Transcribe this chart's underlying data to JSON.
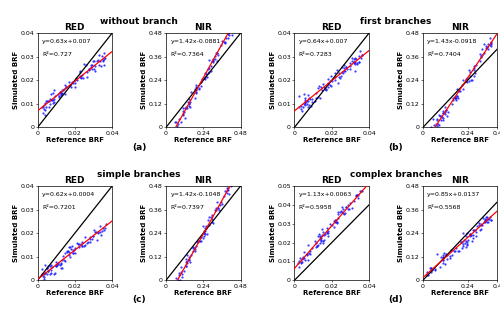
{
  "panels": [
    {
      "group": "without branch",
      "band": "RED",
      "equation": "y=0.63x+0.007",
      "r2": "R²=0.727",
      "xlim": [
        0,
        0.04
      ],
      "ylim": [
        0,
        0.04
      ],
      "xticks": [
        0,
        0.02,
        0.04
      ],
      "yticks": [
        0,
        0.01,
        0.02,
        0.03,
        0.04
      ],
      "xticklabels": [
        "0",
        "0.02",
        "0.04"
      ],
      "yticklabels": [
        "0",
        "0.01",
        "0.02",
        "0.03",
        "0.04"
      ],
      "slope": 0.63,
      "intercept": 0.007,
      "seed": 42
    },
    {
      "group": "without branch",
      "band": "NIR",
      "equation": "y=1.42x-0.0881",
      "r2": "R²=0.7364",
      "xlim": [
        0,
        0.48
      ],
      "ylim": [
        0,
        0.48
      ],
      "xticks": [
        0,
        0.24,
        0.48
      ],
      "yticks": [
        0,
        0.12,
        0.24,
        0.36,
        0.48
      ],
      "xticklabels": [
        "0",
        "0.24",
        "0.48"
      ],
      "yticklabels": [
        "0",
        "0.12",
        "0.24",
        "0.36",
        "0.48"
      ],
      "slope": 1.42,
      "intercept": -0.0881,
      "seed": 43
    },
    {
      "group": "first branches",
      "band": "RED",
      "equation": "y=0.64x+0.007",
      "r2": "R²=0.7283",
      "xlim": [
        0,
        0.04
      ],
      "ylim": [
        0,
        0.04
      ],
      "xticks": [
        0,
        0.02,
        0.04
      ],
      "yticks": [
        0,
        0.01,
        0.02,
        0.03,
        0.04
      ],
      "xticklabels": [
        "0",
        "0.02",
        "0.04"
      ],
      "yticklabels": [
        "0",
        "0.01",
        "0.02",
        "0.03",
        "0.04"
      ],
      "slope": 0.64,
      "intercept": 0.007,
      "seed": 44
    },
    {
      "group": "first branches",
      "band": "NIR",
      "equation": "y=1.43x-0.0918",
      "r2": "R²=0.7404",
      "xlim": [
        0,
        0.4
      ],
      "ylim": [
        0,
        0.48
      ],
      "xticks": [
        0,
        0.24,
        0.4
      ],
      "yticks": [
        0,
        0.12,
        0.24,
        0.36,
        0.48
      ],
      "xticklabels": [
        "0",
        "0.24",
        "0.4"
      ],
      "yticklabels": [
        "0",
        "0.12",
        "0.24",
        "0.36",
        "0.48"
      ],
      "slope": 1.43,
      "intercept": -0.0918,
      "seed": 45
    },
    {
      "group": "simple branches",
      "band": "RED",
      "equation": "y=0.62x+0.0004",
      "r2": "R²=0.7201",
      "xlim": [
        0,
        0.04
      ],
      "ylim": [
        0,
        0.04
      ],
      "xticks": [
        0,
        0.02,
        0.04
      ],
      "yticks": [
        0,
        0.01,
        0.02,
        0.03,
        0.04
      ],
      "xticklabels": [
        "0",
        "0.02",
        "0.04"
      ],
      "yticklabels": [
        "0",
        "0.01",
        "0.02",
        "0.03",
        "0.04"
      ],
      "slope": 0.62,
      "intercept": 0.0004,
      "seed": 46
    },
    {
      "group": "simple branches",
      "band": "NIR",
      "equation": "y=1.42x-0.1048",
      "r2": "R²=0.7397",
      "xlim": [
        0,
        0.48
      ],
      "ylim": [
        0,
        0.48
      ],
      "xticks": [
        0,
        0.24,
        0.48
      ],
      "yticks": [
        0,
        0.12,
        0.24,
        0.36,
        0.48
      ],
      "xticklabels": [
        "0",
        "0.24",
        "0.48"
      ],
      "yticklabels": [
        "0",
        "0.12",
        "0.24",
        "0.36",
        "0.48"
      ],
      "slope": 1.42,
      "intercept": -0.1048,
      "seed": 47
    },
    {
      "group": "complex branches",
      "band": "RED",
      "equation": "y=1.13x+0.0063",
      "r2": "R²=0.5958",
      "xlim": [
        0,
        0.04
      ],
      "ylim": [
        0,
        0.05
      ],
      "xticks": [
        0,
        0.02,
        0.04
      ],
      "yticks": [
        0,
        0.01,
        0.02,
        0.03,
        0.04,
        0.05
      ],
      "xticklabels": [
        "0",
        "0.02",
        "0.04"
      ],
      "yticklabels": [
        "0",
        "0.01",
        "0.02",
        "0.03",
        "0.04",
        "0.05"
      ],
      "slope": 1.13,
      "intercept": 0.0063,
      "seed": 48
    },
    {
      "group": "complex branches",
      "band": "NIR",
      "equation": "y=0.85x+0.0137",
      "r2": "R²=0.5568",
      "xlim": [
        0,
        0.4
      ],
      "ylim": [
        0,
        0.48
      ],
      "xticks": [
        0,
        0.24,
        0.4
      ],
      "yticks": [
        0,
        0.12,
        0.24,
        0.36,
        0.48
      ],
      "xticklabels": [
        "0",
        "0.24",
        "0.4"
      ],
      "yticklabels": [
        "0",
        "0.12",
        "0.24",
        "0.36",
        "0.48"
      ],
      "slope": 0.85,
      "intercept": 0.0137,
      "seed": 49
    }
  ],
  "group_titles": [
    "without branch",
    "first branches",
    "simple branches",
    "complex branches"
  ],
  "group_labels": [
    "(a)",
    "(b)",
    "(c)",
    "(d)"
  ],
  "dot_color": "#1a1aff",
  "line_color_11": "black",
  "line_color_fit": "red",
  "bg_color": "#ffffff",
  "fontsize_title": 6.5,
  "fontsize_band": 6.5,
  "fontsize_axis": 5.0,
  "fontsize_tick": 4.5,
  "fontsize_eq": 4.5,
  "fontsize_label": 6.5,
  "dot_size": 2.5,
  "dot_alpha": 0.85,
  "n_points": 90
}
